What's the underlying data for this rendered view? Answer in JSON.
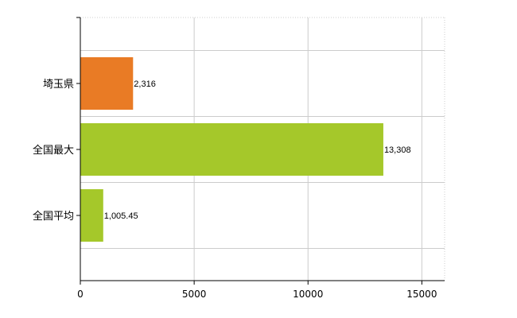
{
  "chart_data": {
    "type": "bar",
    "orientation": "horizontal",
    "title": "",
    "xlabel": "",
    "ylabel": "",
    "categories": [
      "埼玉県",
      "全国最大",
      "全国平均"
    ],
    "values": [
      2316,
      13308,
      1005.45
    ],
    "value_labels": [
      "2,316",
      "13,308",
      "1,005.45"
    ],
    "bar_colors": [
      "#e97b25",
      "#a5c82a",
      "#a5c82a"
    ],
    "xlim": [
      0,
      16000
    ],
    "xticks": [
      0,
      5000,
      10000,
      15000
    ],
    "xtick_labels": [
      "0",
      "5000",
      "10000",
      "15000"
    ],
    "grid": true,
    "grid_color": "#cccccc",
    "legend": false
  }
}
